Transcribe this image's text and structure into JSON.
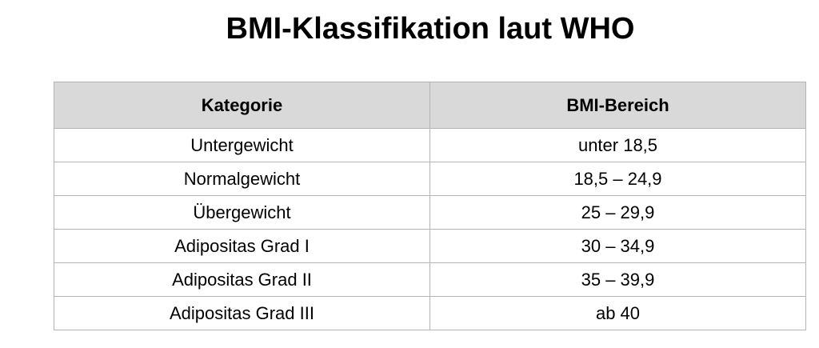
{
  "title": "BMI-Klassifikation laut WHO",
  "table": {
    "headers": [
      "Kategorie",
      "BMI-Bereich"
    ],
    "rows": [
      [
        "Untergewicht",
        "unter 18,5"
      ],
      [
        "Normalgewicht",
        "18,5 – 24,9"
      ],
      [
        "Übergewicht",
        "25 – 29,9"
      ],
      [
        "Adipositas Grad I",
        "30 – 34,9"
      ],
      [
        "Adipositas Grad II",
        "35 – 39,9"
      ],
      [
        "Adipositas Grad III",
        "ab 40"
      ]
    ]
  }
}
